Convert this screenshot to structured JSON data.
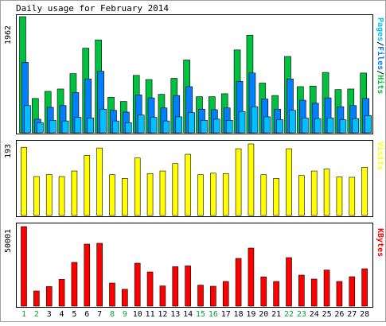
{
  "title": "Daily usage for February 2014",
  "colors": {
    "hits": "#00c040",
    "files": "#0080ff",
    "pages": "#00c0ff",
    "visits": "#ffff00",
    "kbytes": "#ff0000",
    "weekday": "#000000",
    "weekend": "#00a040",
    "background": "#ffffff",
    "frame": "#000000",
    "panel_bg": "#ffffff"
  },
  "chart_data": [
    {
      "type": "bar",
      "panel": "hits",
      "max_label": "1962",
      "ylim": [
        0,
        1962
      ],
      "legend": {
        "pages": "Pages",
        "sep1": "/",
        "files": "Files",
        "sep2": "/",
        "hits": "Hits"
      },
      "categories": [
        "1",
        "2",
        "3",
        "4",
        "5",
        "6",
        "7",
        "8",
        "9",
        "10",
        "11",
        "12",
        "13",
        "14",
        "15",
        "16",
        "17",
        "18",
        "19",
        "20",
        "21",
        "22",
        "23",
        "24",
        "25",
        "26",
        "27",
        "28"
      ],
      "series": [
        {
          "name": "Hits",
          "values": [
            1962,
            580,
            700,
            740,
            1000,
            1430,
            1570,
            600,
            530,
            970,
            900,
            650,
            920,
            1230,
            610,
            610,
            660,
            1400,
            1650,
            840,
            630,
            1290,
            780,
            790,
            1020,
            730,
            740,
            1010
          ]
        },
        {
          "name": "Files",
          "values": [
            1190,
            230,
            430,
            460,
            680,
            910,
            1040,
            380,
            350,
            640,
            590,
            420,
            630,
            780,
            400,
            390,
            420,
            870,
            1010,
            570,
            400,
            910,
            550,
            500,
            590,
            440,
            460,
            580
          ]
        },
        {
          "name": "Pages",
          "values": [
            460,
            170,
            210,
            200,
            260,
            250,
            400,
            200,
            170,
            300,
            260,
            200,
            270,
            340,
            210,
            230,
            210,
            360,
            440,
            270,
            220,
            380,
            250,
            240,
            250,
            220,
            240,
            290
          ]
        }
      ]
    },
    {
      "type": "bar",
      "panel": "visits",
      "max_label": "193",
      "ylim": [
        0,
        193
      ],
      "legend": "Visits",
      "categories": [
        "1",
        "2",
        "3",
        "4",
        "5",
        "6",
        "7",
        "8",
        "9",
        "10",
        "11",
        "12",
        "13",
        "14",
        "15",
        "16",
        "17",
        "18",
        "19",
        "20",
        "21",
        "22",
        "23",
        "24",
        "25",
        "26",
        "27",
        "28"
      ],
      "values": [
        184,
        105,
        110,
        105,
        120,
        162,
        182,
        110,
        100,
        155,
        113,
        120,
        140,
        165,
        110,
        114,
        113,
        180,
        193,
        110,
        100,
        180,
        108,
        120,
        125,
        104,
        103,
        130
      ]
    },
    {
      "type": "bar",
      "panel": "kbytes",
      "max_label": "50001",
      "ylim": [
        0,
        50001
      ],
      "legend": "KBytes",
      "categories": [
        "1",
        "2",
        "3",
        "4",
        "5",
        "6",
        "7",
        "8",
        "9",
        "10",
        "11",
        "12",
        "13",
        "14",
        "15",
        "16",
        "17",
        "18",
        "19",
        "20",
        "21",
        "22",
        "23",
        "24",
        "25",
        "26",
        "27",
        "28"
      ],
      "values": [
        50001,
        9500,
        12300,
        16800,
        27500,
        39000,
        39500,
        14500,
        10600,
        27000,
        21500,
        12700,
        24800,
        25300,
        13200,
        12500,
        15500,
        30000,
        36500,
        18400,
        15500,
        30500,
        19500,
        17000,
        22700,
        15500,
        18500,
        23500
      ]
    }
  ]
}
